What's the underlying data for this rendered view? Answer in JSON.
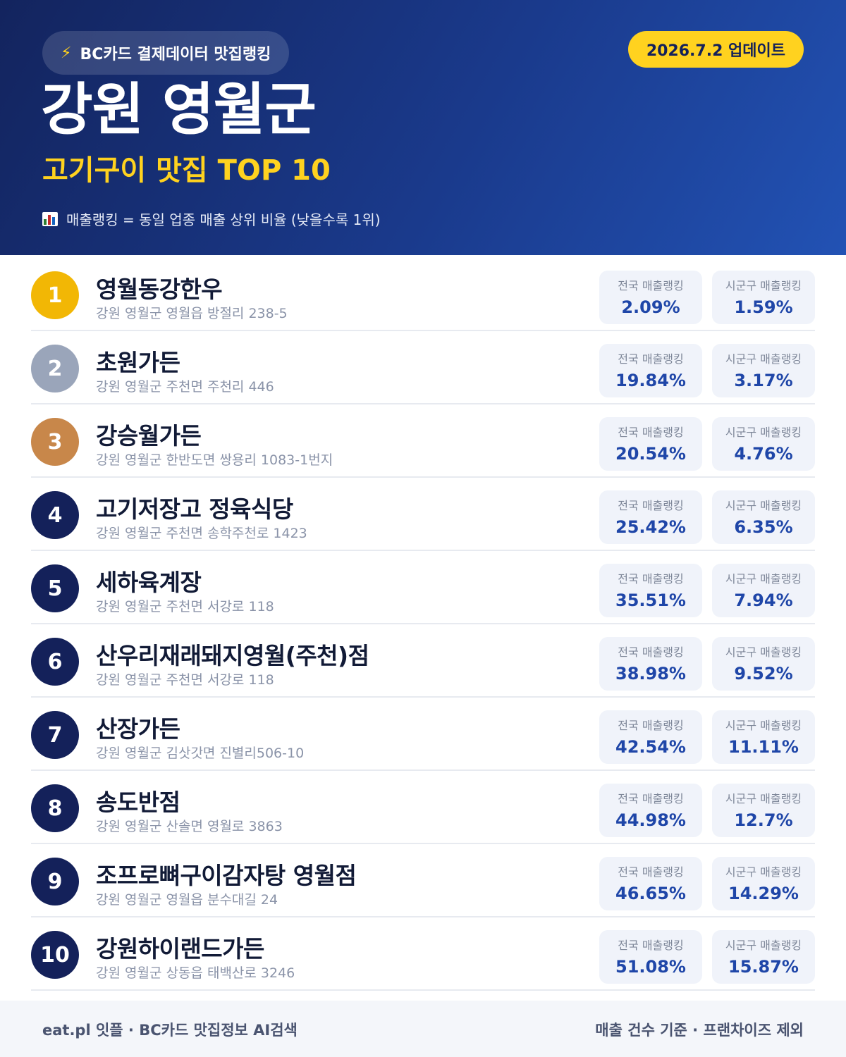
{
  "header": {
    "brand": "BC카드 결제데이터 맛집랭킹",
    "brand_icon": "lightning-icon",
    "update_badge": "2026.7.2 업데이트",
    "region_title": "강원 영월군",
    "sub_title": "고기구이 맛집 TOP 10",
    "legend_icon": "bar-chart-icon",
    "legend_note": "매출랭킹 = 동일 업종 매출 상위 비율 (낮을수록 1위)"
  },
  "colors": {
    "header_start": "#13245e",
    "header_end": "#2252b4",
    "accent_yellow": "#ffd21f",
    "rank_gold": "#f2b705",
    "rank_silver": "#9aa5ba",
    "rank_bronze": "#c8874a",
    "rank_default": "#14215a",
    "metric_value": "#1f46a8"
  },
  "metric_labels": {
    "national": "전국 매출랭킹",
    "local": "시군구 매출랭킹"
  },
  "restaurants": [
    {
      "rank": "1",
      "name": "영월동강한우",
      "address": "강원 영월군 영월읍 방절리 238-5",
      "national": "2.09%",
      "local": "1.59%"
    },
    {
      "rank": "2",
      "name": "초원가든",
      "address": "강원 영월군 주천면 주천리 446",
      "national": "19.84%",
      "local": "3.17%"
    },
    {
      "rank": "3",
      "name": "강승월가든",
      "address": "강원 영월군 한반도면 쌍용리 1083-1번지",
      "national": "20.54%",
      "local": "4.76%"
    },
    {
      "rank": "4",
      "name": "고기저장고 정육식당",
      "address": "강원 영월군 주천면 송학주천로 1423",
      "national": "25.42%",
      "local": "6.35%"
    },
    {
      "rank": "5",
      "name": "세하육계장",
      "address": "강원 영월군 주천면 서강로 118",
      "national": "35.51%",
      "local": "7.94%"
    },
    {
      "rank": "6",
      "name": "산우리재래돼지영월(주천)점",
      "address": "강원 영월군 주천면 서강로 118",
      "national": "38.98%",
      "local": "9.52%"
    },
    {
      "rank": "7",
      "name": "산장가든",
      "address": "강원 영월군 김삿갓면 진별리506-10",
      "national": "42.54%",
      "local": "11.11%"
    },
    {
      "rank": "8",
      "name": "송도반점",
      "address": "강원 영월군 산솔면 영월로 3863",
      "national": "44.98%",
      "local": "12.7%"
    },
    {
      "rank": "9",
      "name": "조프로뼈구이감자탕 영월점",
      "address": "강원 영월군 영월읍 분수대길 24",
      "national": "46.65%",
      "local": "14.29%"
    },
    {
      "rank": "10",
      "name": "강원하이랜드가든",
      "address": "강원 영월군 상동읍 태백산로 3246",
      "national": "51.08%",
      "local": "15.87%"
    }
  ],
  "footer": {
    "left": "eat.pl 잇플 · BC카드 맛집정보 AI검색",
    "right": "매출 건수 기준 · 프랜차이즈 제외"
  }
}
